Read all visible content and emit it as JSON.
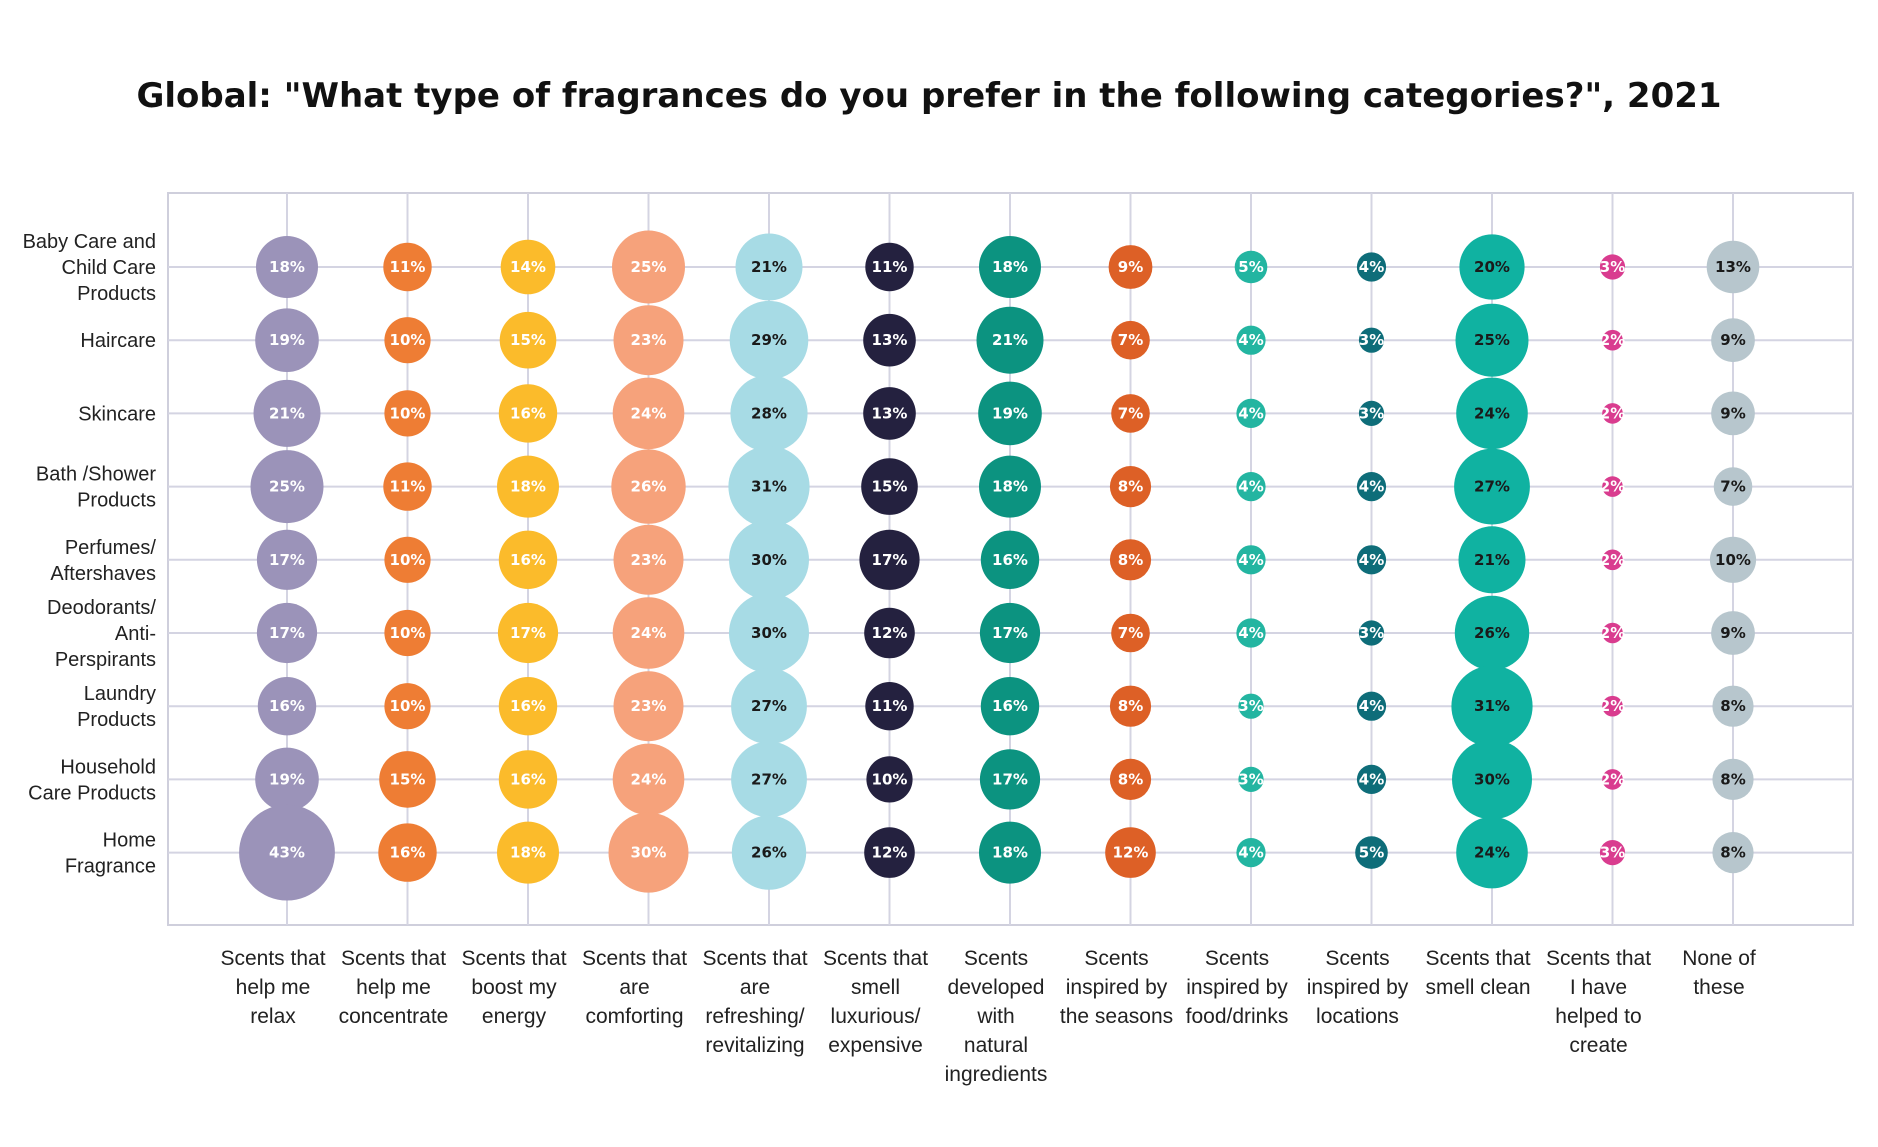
{
  "chart_data": {
    "type": "bubble-matrix",
    "title": "Global: \"What type of fragrances do you prefer in the following categories?\", 2021",
    "rows": [
      "Baby Care and Child Care Products",
      "Haircare",
      "Skincare",
      "Bath /Shower Products",
      "Perfumes/ Aftershaves",
      "Deodorants/ Anti-Perspirants",
      "Laundry Products",
      "Household Care Products",
      "Home Fragrance"
    ],
    "row_label_lines": [
      [
        "Baby Care and",
        "Child Care",
        "Products"
      ],
      [
        "Haircare"
      ],
      [
        "Skincare"
      ],
      [
        "Bath /Shower",
        "Products"
      ],
      [
        "Perfumes/",
        "Aftershaves"
      ],
      [
        "Deodorants/",
        "Anti-",
        "Perspirants"
      ],
      [
        "Laundry",
        "Products"
      ],
      [
        "Household",
        "Care Products"
      ],
      [
        "Home",
        "Fragrance"
      ]
    ],
    "columns": [
      "Scents that help me relax",
      "Scents that help me concentrate",
      "Scents that boost my energy",
      "Scents that are comforting",
      "Scents that are refreshing/ revitalizing",
      "Scents that smell luxurious/ expensive",
      "Scents developed with natural ingredients",
      "Scents inspired by the seasons",
      "Scents inspired by food/drinks",
      "Scents inspired by locations",
      "Scents that smell clean",
      "Scents that I have helped to create",
      "None of these"
    ],
    "column_label_lines": [
      [
        "Scents that",
        "help me",
        "relax"
      ],
      [
        "Scents that",
        "help me",
        "concentrate"
      ],
      [
        "Scents that",
        "boost my",
        "energy"
      ],
      [
        "Scents that",
        "are",
        "comforting"
      ],
      [
        "Scents that",
        "are",
        "refreshing/",
        "revitalizing"
      ],
      [
        "Scents that",
        "smell",
        "luxurious/",
        "expensive"
      ],
      [
        "Scents",
        "developed",
        "with",
        "natural",
        "ingredients"
      ],
      [
        "Scents",
        "inspired by",
        "the seasons"
      ],
      [
        "Scents",
        "inspired by",
        "food/drinks"
      ],
      [
        "Scents",
        "inspired by",
        "locations"
      ],
      [
        "Scents that",
        "smell clean"
      ],
      [
        "Scents that",
        "I have",
        "helped to",
        "create"
      ],
      [
        "None of",
        "these"
      ]
    ],
    "column_colors": [
      "#9b93b9",
      "#ee7d34",
      "#fbbb2b",
      "#f6a27b",
      "#a7dbe5",
      "#24213f",
      "#0c9380",
      "#dd6026",
      "#23b5a1",
      "#0e6d79",
      "#10b2a1",
      "#d93c8f",
      "#b7c6cd"
    ],
    "label_colors": [
      "#ffffff",
      "#ffffff",
      "#ffffff",
      "#ffffff",
      "#1a1a1a",
      "#ffffff",
      "#ffffff",
      "#ffffff",
      "#ffffff",
      "#ffffff",
      "#1a1a1a",
      "#ffffff",
      "#1a1a1a"
    ],
    "unit": "%",
    "values": [
      [
        18,
        11,
        14,
        25,
        21,
        11,
        18,
        9,
        5,
        4,
        20,
        3,
        13
      ],
      [
        19,
        10,
        15,
        23,
        29,
        13,
        21,
        7,
        4,
        3,
        25,
        2,
        9
      ],
      [
        21,
        10,
        16,
        24,
        28,
        13,
        19,
        7,
        4,
        3,
        24,
        2,
        9
      ],
      [
        25,
        11,
        18,
        26,
        31,
        15,
        18,
        8,
        4,
        4,
        27,
        2,
        7
      ],
      [
        17,
        10,
        16,
        23,
        30,
        17,
        16,
        8,
        4,
        4,
        21,
        2,
        10
      ],
      [
        17,
        10,
        17,
        24,
        30,
        12,
        17,
        7,
        4,
        3,
        26,
        2,
        9
      ],
      [
        16,
        10,
        16,
        23,
        27,
        11,
        16,
        8,
        3,
        4,
        31,
        2,
        8
      ],
      [
        19,
        15,
        16,
        24,
        27,
        10,
        17,
        8,
        3,
        4,
        30,
        2,
        8
      ],
      [
        43,
        16,
        18,
        30,
        26,
        12,
        18,
        12,
        4,
        5,
        24,
        3,
        8
      ]
    ],
    "grid": true,
    "legend": "none"
  }
}
